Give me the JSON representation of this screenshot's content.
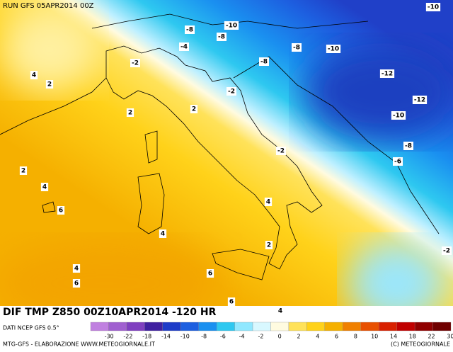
{
  "header": "RUN GFS 05APR2014 00Z",
  "title": "DIF TMP Z850 00Z10APR2014 -120 HR",
  "source": "DATI NCEP GFS 0.5°",
  "credits": "MTG-GFS - ELABORAZIONE WWW.METEOGIORNALE.IT",
  "copyright": "(C) METEOGIORNALE",
  "contour_labels": [
    -10,
    -10,
    -8,
    -8,
    -4,
    -8,
    -10,
    -8,
    -2,
    -12,
    4,
    2,
    -2,
    -12,
    2,
    2,
    -10,
    -8,
    -2,
    -6,
    2,
    4,
    4,
    6,
    4,
    2,
    -2,
    4,
    6,
    6,
    6,
    4
  ],
  "legend": {
    "ticks": [
      -30,
      -22,
      -18,
      -14,
      -10,
      -8,
      -6,
      -4,
      -2,
      0,
      2,
      4,
      6,
      8,
      10,
      14,
      18,
      22,
      30
    ],
    "colors": [
      "#c080e0",
      "#a060d0",
      "#8040c0",
      "#4020a0",
      "#1e3cc8",
      "#1d5fe0",
      "#1a90f0",
      "#2ec8f0",
      "#90e8ff",
      "#d8f8ff",
      "#fffbe0",
      "#ffe25a",
      "#ffd21a",
      "#f5b000",
      "#f08000",
      "#e85000",
      "#d82000",
      "#c00000",
      "#900000",
      "#700000"
    ]
  }
}
